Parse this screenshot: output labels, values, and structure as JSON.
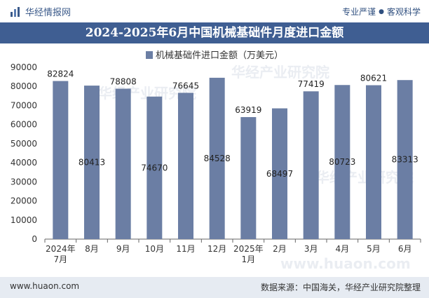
{
  "header": {
    "brand": "华经情报网",
    "tagline_left": "专业严谨",
    "tagline_right": "客观科学"
  },
  "title": "2024-2025年6月中国机械基础件月度进口金额",
  "footer": {
    "url": "www.huaon.com",
    "source": "数据来源：中国海关，华经产业研究院整理"
  },
  "watermarks": [
    "华经产业研究院",
    "华经产业研究院",
    "华经产业研究院",
    "www.huaon.com"
  ],
  "colors": {
    "bar": "#6b7ea4",
    "title_bg": "#3f5e92",
    "footer_bg": "#e6ebf2"
  },
  "chart_data": {
    "type": "bar",
    "categories": [
      [
        "2024年",
        "7月"
      ],
      [
        "8月"
      ],
      [
        "9月"
      ],
      [
        "10月"
      ],
      [
        "11月"
      ],
      [
        "12月"
      ],
      [
        "2025年",
        "1月"
      ],
      [
        "2月"
      ],
      [
        "3月"
      ],
      [
        "4月"
      ],
      [
        "5月"
      ],
      [
        "6月"
      ]
    ],
    "series": [
      {
        "name": "机械基础件进口金额（万美元）",
        "values": [
          82824,
          80413,
          78808,
          74670,
          76645,
          84528,
          63919,
          68497,
          77419,
          80723,
          80621,
          83313
        ],
        "label_position": [
          "top",
          "middle",
          "top",
          "middle",
          "top",
          "middle",
          "top",
          "middle",
          "top",
          "middle",
          "top",
          "middle"
        ]
      }
    ],
    "ylim": [
      0,
      90000
    ],
    "yticks": [
      0,
      10000,
      20000,
      30000,
      40000,
      50000,
      60000,
      70000,
      80000,
      90000
    ],
    "grid": false,
    "legend": "top-center"
  }
}
